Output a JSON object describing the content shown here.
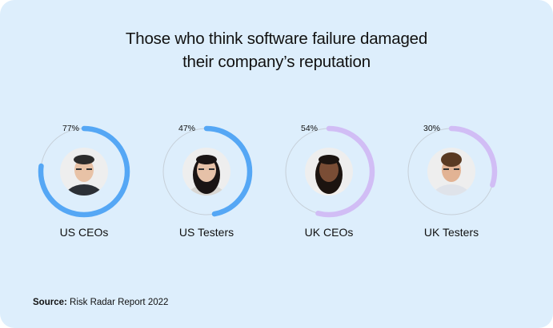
{
  "chart_data": {
    "type": "radial-progress",
    "title": "Those who think software failure damaged their company’s reputation",
    "title_lines": [
      "Those who think software failure damaged",
      "their company’s reputation"
    ],
    "categories": [
      "US CEOs",
      "US Testers",
      "UK CEOs",
      "UK Testers"
    ],
    "values": [
      77,
      47,
      54,
      30
    ],
    "value_labels": [
      "77%",
      "47%",
      "54%",
      "30%"
    ],
    "unit": "%",
    "colors": [
      "#55a7f5",
      "#55a7f5",
      "#d1bdf5",
      "#d1bdf5"
    ],
    "track_color": "#c6cfd8",
    "avatars": [
      "person-icon",
      "person-icon",
      "person-icon",
      "person-icon"
    ]
  },
  "source": {
    "label": "Source:",
    "text": "Risk Radar Report 2022"
  },
  "colors": {
    "background": "#ddeefc",
    "text": "#111111"
  }
}
